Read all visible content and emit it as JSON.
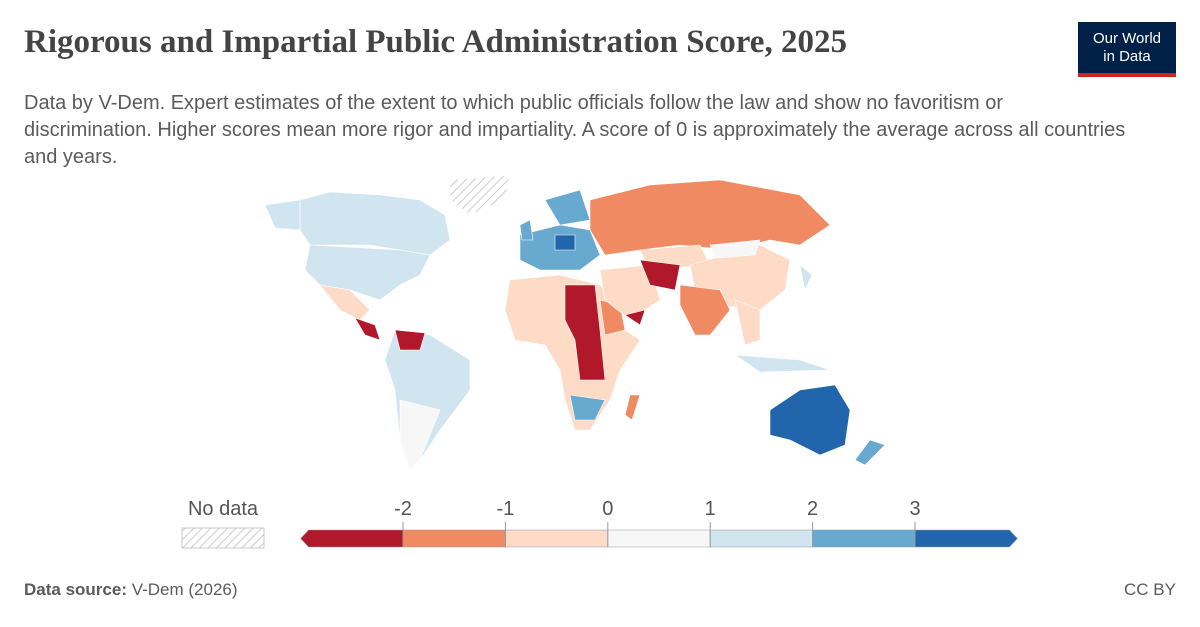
{
  "header": {
    "title": "Rigorous and Impartial Public Administration Score, 2025",
    "subtitle": "Data by V-Dem. Expert estimates of the extent to which public officials follow the law and show no favoritism or discrimination. Higher scores mean more rigor and impartiality. A score of 0 is approximately the average across all countries and years.",
    "logo": [
      "Our World",
      "in Data"
    ]
  },
  "legend": {
    "no_data_label": "No data",
    "ticks": [
      -2,
      -1,
      0,
      1,
      2,
      3
    ],
    "colors": [
      "#b2182b",
      "#ef8a62",
      "#fddbc7",
      "#f7f7f7",
      "#d1e5f0",
      "#67a9cf",
      "#2166ac"
    ]
  },
  "footer": {
    "source_label": "Data source:",
    "source": "V-Dem (2026)",
    "license": "CC BY"
  }
}
